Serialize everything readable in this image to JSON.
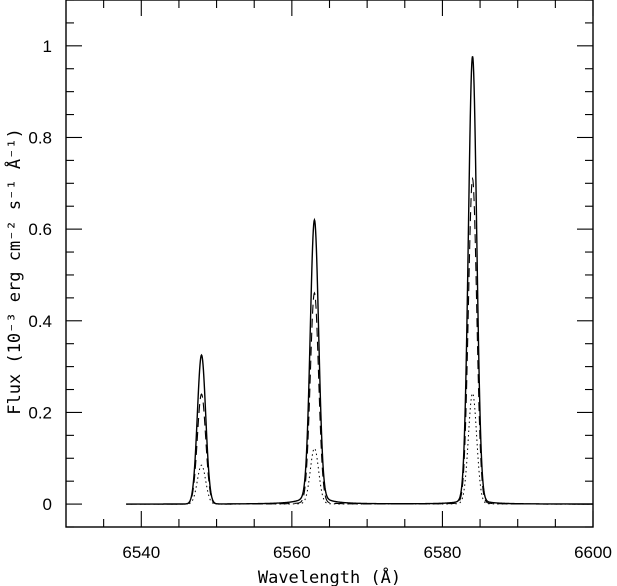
{
  "chart_data": {
    "type": "line",
    "title": "",
    "xlabel": "Wavelength (Å)",
    "ylabel": "Flux (10⁻³ erg cm⁻² s⁻¹ Å⁻¹)",
    "xlim": [
      6530,
      6600
    ],
    "ylim": [
      -0.05,
      1.1
    ],
    "x_ticks": [
      6540,
      6560,
      6580,
      6600
    ],
    "x_tick_labels": [
      "6540",
      "6560",
      "6580",
      "6600"
    ],
    "y_ticks": [
      0,
      0.2,
      0.4,
      0.6,
      0.8,
      1
    ],
    "y_tick_labels": [
      "0",
      "0.2",
      "0.4",
      "0.6",
      "0.8",
      "1"
    ],
    "x_range_plotted": [
      6538,
      6600
    ],
    "lines": [
      {
        "center": 6548.0,
        "sigma": 0.55,
        "wing": 0.0
      },
      {
        "center": 6563.0,
        "sigma": 0.55,
        "wing": 0.022
      },
      {
        "center": 6584.0,
        "sigma": 0.55,
        "wing": 0.012
      }
    ],
    "series": [
      {
        "style": "solid",
        "peaks": [
          0.325,
          0.598,
          0.965
        ]
      },
      {
        "style": "dashed",
        "peaks": [
          0.24,
          0.455,
          0.705
        ]
      },
      {
        "style": "dotted",
        "peaks": [
          0.085,
          0.12,
          0.24
        ]
      }
    ],
    "grid": false,
    "legend": "none"
  }
}
